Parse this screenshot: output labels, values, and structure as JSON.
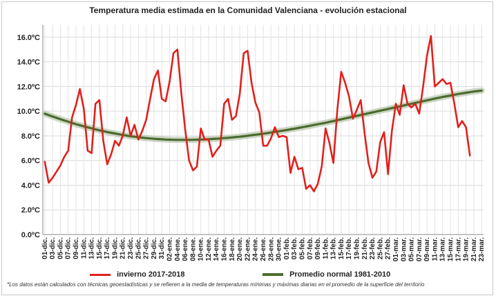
{
  "chart_data": {
    "type": "line",
    "title": "Temperatura media estimada en la Comunidad Valenciana - evolución estacional",
    "xlabel": "",
    "ylabel": "",
    "ylim": [
      0,
      17
    ],
    "yticks": [
      0,
      2,
      4,
      6,
      8,
      10,
      12,
      14,
      16
    ],
    "ytick_labels": [
      "0.0ºC",
      "2.0ºC",
      "4.0ºC",
      "6.0ºC",
      "8.0ºC",
      "10.0ºC",
      "12.0ºC",
      "14.0ºC",
      "16.0ºC"
    ],
    "x_tick_labels": [
      "01-dic.",
      "03-dic.",
      "05-dic.",
      "07-dic.",
      "09-dic.",
      "11-dic.",
      "13-dic.",
      "15-dic.",
      "17-dic.",
      "19-dic.",
      "21-dic.",
      "23-dic.",
      "25-dic.",
      "27-dic.",
      "29-dic.",
      "31-dic.",
      "02-ene.",
      "04-ene.",
      "06-ene.",
      "08-ene.",
      "10-ene.",
      "12-ene.",
      "14-ene.",
      "16-ene.",
      "18-ene.",
      "20-ene.",
      "22-ene.",
      "24-ene.",
      "26-ene.",
      "28-ene.",
      "30-ene.",
      "01-feb.",
      "03-feb.",
      "05-feb.",
      "07-feb.",
      "09-feb.",
      "11-feb.",
      "13-feb.",
      "15-feb.",
      "17-feb.",
      "19-feb.",
      "21-feb.",
      "23-feb.",
      "25-feb.",
      "27-feb.",
      "01-mar.",
      "03-mar.",
      "05-mar.",
      "07-mar.",
      "09-mar.",
      "11-mar.",
      "13-mar.",
      "15-mar.",
      "17-mar.",
      "19-mar.",
      "21-mar.",
      "23-mar."
    ],
    "grid": true,
    "legend_position": "bottom",
    "series": [
      {
        "name": "invierno 2017-2018",
        "color": "#e0201b",
        "values": [
          5.9,
          4.2,
          4.6,
          5.1,
          5.6,
          6.3,
          6.8,
          9.5,
          10.5,
          11.8,
          10.2,
          6.8,
          6.6,
          10.6,
          10.9,
          7.6,
          5.7,
          6.5,
          7.6,
          7.2,
          8.0,
          9.5,
          8.0,
          8.9,
          7.7,
          8.4,
          9.3,
          11.0,
          12.6,
          13.3,
          11.0,
          10.8,
          12.4,
          14.7,
          15.0,
          11.5,
          8.5,
          6.0,
          5.2,
          5.5,
          8.6,
          7.7,
          7.7,
          6.3,
          6.8,
          7.2,
          10.6,
          11.0,
          9.3,
          9.6,
          11.4,
          14.7,
          14.9,
          12.3,
          10.7,
          9.9,
          7.2,
          7.2,
          7.8,
          8.7,
          7.9,
          8.0,
          7.9,
          5.0,
          6.3,
          5.3,
          5.4,
          3.7,
          4.0,
          3.5,
          4.1,
          5.5,
          8.6,
          7.4,
          5.8,
          10.1,
          13.2,
          12.3,
          11.2,
          9.4,
          10.1,
          10.9,
          8.2,
          5.8,
          4.6,
          5.1,
          7.5,
          8.3,
          4.9,
          8.4,
          10.6,
          9.7,
          12.1,
          10.6,
          10.3,
          10.6,
          9.8,
          12.0,
          14.5,
          16.1,
          12.0,
          12.3,
          12.6,
          12.2,
          12.3,
          10.6,
          8.7,
          9.2,
          8.7,
          6.4
        ]
      },
      {
        "name": "Promedio normal 1981-2010",
        "color": "#4a6b2e",
        "values": [
          9.8,
          9.68,
          9.57,
          9.46,
          9.35,
          9.25,
          9.15,
          9.05,
          8.95,
          8.86,
          8.77,
          8.69,
          8.61,
          8.53,
          8.45,
          8.38,
          8.31,
          8.25,
          8.19,
          8.13,
          8.07,
          8.02,
          7.97,
          7.93,
          7.89,
          7.85,
          7.82,
          7.79,
          7.76,
          7.74,
          7.72,
          7.7,
          7.69,
          7.68,
          7.67,
          7.67,
          7.67,
          7.67,
          7.68,
          7.69,
          7.7,
          7.71,
          7.73,
          7.75,
          7.77,
          7.79,
          7.82,
          7.84,
          7.87,
          7.9,
          7.93,
          7.97,
          8.01,
          8.05,
          8.09,
          8.13,
          8.17,
          8.22,
          8.27,
          8.32,
          8.37,
          8.42,
          8.47,
          8.53,
          8.58,
          8.64,
          8.7,
          8.76,
          8.82,
          8.88,
          8.94,
          9.0,
          9.06,
          9.13,
          9.2,
          9.27,
          9.34,
          9.41,
          9.48,
          9.55,
          9.62,
          9.69,
          9.76,
          9.83,
          9.9,
          9.97,
          10.04,
          10.11,
          10.18,
          10.25,
          10.32,
          10.39,
          10.46,
          10.53,
          10.6,
          10.67,
          10.74,
          10.81,
          10.88,
          10.95,
          11.02,
          11.09,
          11.15,
          11.21,
          11.27,
          11.33,
          11.39,
          11.44,
          11.49,
          11.54,
          11.59,
          11.63,
          11.67
        ]
      }
    ]
  },
  "footnote": "*Los datos están calculados con técnicas geoestadísticas y se refieren a la media de temperaturas mínimas y máximas diarias en el promedio de la superficie del territorio"
}
